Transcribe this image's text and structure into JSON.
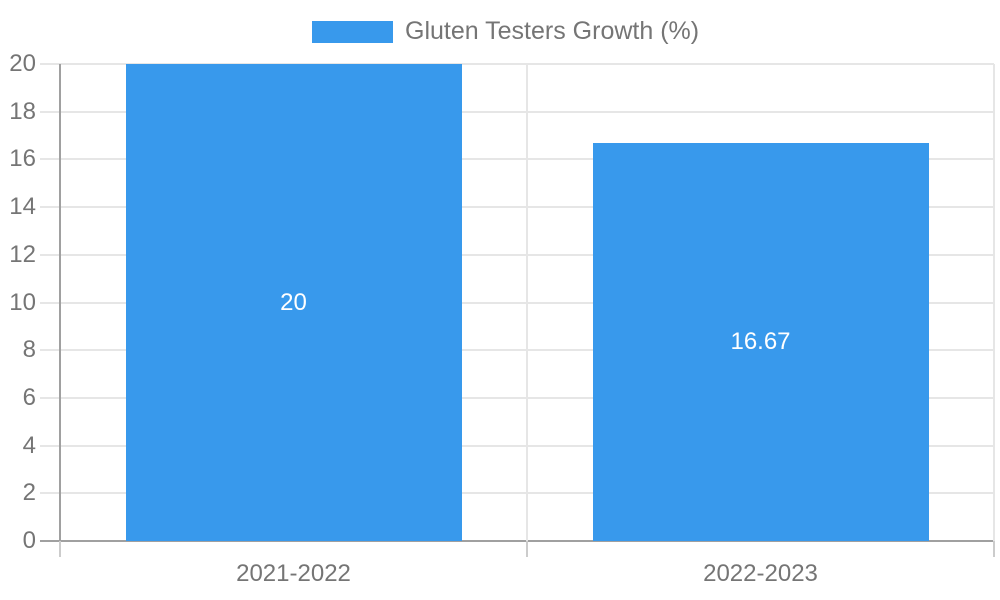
{
  "chart_data": {
    "type": "bar",
    "title": "",
    "categories": [
      "2021-2022",
      "2022-2023"
    ],
    "series": [
      {
        "name": "Gluten Testers Growth (%)",
        "color": "#3899ec",
        "values": [
          20,
          16.67
        ],
        "value_labels": [
          "20",
          "16.67"
        ]
      }
    ],
    "ylim": [
      0,
      20
    ],
    "yticks": [
      0,
      2,
      4,
      6,
      8,
      10,
      12,
      14,
      16,
      18,
      20
    ],
    "grid": true,
    "legend_position": "top",
    "value_labels_inside_bars": true
  },
  "colors": {
    "bar": "#3899ec",
    "value_label_text": "#ffffff",
    "tick_text": "#757575",
    "legend_text": "#757575",
    "gridline": "#e6e6e6",
    "axis_line": "#a0a0a0",
    "below_axis_tick": "#cccccc",
    "background": "#ffffff"
  }
}
